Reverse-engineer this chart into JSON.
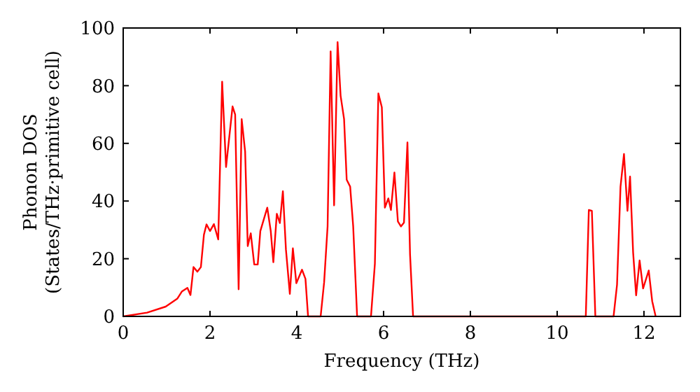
{
  "chart_data": {
    "type": "line",
    "xlabel": "Frequency (THz)",
    "ylabel": "Phonon DOS\n(States/THz·primitive cell)",
    "xlim": [
      0,
      12.84
    ],
    "ylim": [
      0,
      100
    ],
    "xticks": [
      0,
      2,
      4,
      6,
      8,
      10,
      12
    ],
    "yticks": [
      0,
      20,
      40,
      60,
      80,
      100
    ],
    "grid": false,
    "series": [
      {
        "color": "#ff0000",
        "x": [
          0,
          0.55,
          0.98,
          1.25,
          1.35,
          1.48,
          1.55,
          1.62,
          1.71,
          1.79,
          1.86,
          1.92,
          2.0,
          2.09,
          2.19,
          2.28,
          2.37,
          2.52,
          2.58,
          2.66,
          2.73,
          2.81,
          2.87,
          2.94,
          3.02,
          3.1,
          3.16,
          3.32,
          3.4,
          3.46,
          3.54,
          3.61,
          3.68,
          3.75,
          3.84,
          3.91,
          3.99,
          4.12,
          4.2,
          4.26,
          4.55,
          4.63,
          4.71,
          4.78,
          4.86,
          4.94,
          5.01,
          5.09,
          5.15,
          5.23,
          5.3,
          5.39,
          5.71,
          5.8,
          5.88,
          5.96,
          6.03,
          6.11,
          6.17,
          6.25,
          6.33,
          6.4,
          6.47,
          6.55,
          6.61,
          6.68,
          10.66,
          10.73,
          10.8,
          10.88,
          11.3,
          11.38,
          11.46,
          11.54,
          11.62,
          11.68,
          11.75,
          11.82,
          11.9,
          11.98,
          12.11,
          12.19,
          12.27
        ],
        "values": [
          0,
          1.3,
          3.4,
          6.2,
          8.6,
          9.9,
          7.4,
          17.1,
          15.5,
          17.1,
          28.3,
          31.9,
          29.6,
          32,
          26.7,
          81.4,
          51.8,
          72.8,
          70,
          9.4,
          68.4,
          57.1,
          24.4,
          28.8,
          18,
          18,
          29.6,
          37.7,
          29.6,
          18.8,
          35.6,
          32.4,
          43.4,
          23.2,
          7.8,
          23.6,
          11.5,
          16.2,
          13,
          0,
          0,
          11.8,
          31.2,
          91.9,
          38.5,
          95.1,
          76.5,
          68.4,
          47.4,
          45,
          31.2,
          0,
          0,
          18.3,
          77.3,
          72.5,
          37.7,
          40.9,
          36.9,
          49.9,
          32.9,
          31.2,
          32.5,
          60.3,
          21.5,
          0,
          0,
          36.9,
          36.6,
          0,
          0,
          11,
          45,
          56.3,
          36.6,
          48.5,
          22.3,
          7.3,
          19.4,
          9.7,
          15.9,
          5.3,
          0
        ]
      }
    ]
  }
}
